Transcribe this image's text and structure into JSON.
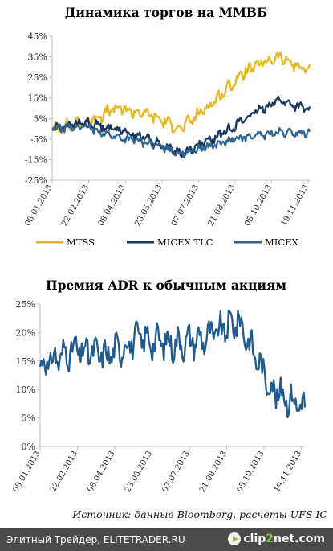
{
  "chart_data": [
    {
      "type": "line",
      "title": "Динамика торгов на ММВБ",
      "ylim": [
        -25,
        45
      ],
      "y_ticks": [
        "45%",
        "35%",
        "25%",
        "15%",
        "5%",
        "-5%",
        "-15%",
        "-25%"
      ],
      "x_ticks": [
        "08.01.2013",
        "22.02.2013",
        "08.04.2013",
        "23.05.2013",
        "07.07.2013",
        "21.08.2013",
        "05.10.2013",
        "19.11.2013"
      ],
      "grid": false,
      "legend_position": "bottom",
      "x": [
        "08.01.2013",
        "22.02.2013",
        "08.04.2013",
        "23.05.2013",
        "07.07.2013",
        "21.08.2013",
        "05.10.2013",
        "19.11.2013",
        "09.12.2013"
      ],
      "series": [
        {
          "name": "MTSS",
          "color": "#e6b823",
          "values": [
            0,
            3,
            10,
            7,
            0,
            13,
            28,
            35,
            28
          ]
        },
        {
          "name": "MICEX TLC",
          "color": "#17375e",
          "values": [
            0,
            3,
            0,
            -5,
            -12,
            -5,
            5,
            14,
            9
          ]
        },
        {
          "name": "MICEX",
          "color": "#2e6494",
          "values": [
            0,
            1,
            -4,
            -7,
            -12,
            -8,
            -4,
            -2,
            -2
          ]
        }
      ]
    },
    {
      "type": "line",
      "title": "Премия ADR к обычным акциям",
      "ylim": [
        0,
        25
      ],
      "y_ticks": [
        "25%",
        "20%",
        "15%",
        "10%",
        "5%",
        "0%"
      ],
      "x_ticks": [
        "08.01.2013",
        "22.02.2013",
        "08.04.2013",
        "23.05.2013",
        "07.07.2013",
        "21.08.2013",
        "05.10.2013",
        "19.11.2013"
      ],
      "grid": false,
      "x": [
        "08.01.2013",
        "22.02.2013",
        "08.04.2013",
        "23.05.2013",
        "07.07.2013",
        "21.08.2013",
        "05.10.2013",
        "19.11.2013",
        "09.12.2013"
      ],
      "series": [
        {
          "color": "#1f5b8f",
          "values": [
            14,
            17,
            16,
            19,
            18,
            19,
            22,
            10,
            7
          ]
        }
      ]
    }
  ],
  "source": "Источник: данные Bloomberg, расчеты UFS IC",
  "footer": {
    "left": "Элитный Трейдер, ELITETRADER.RU",
    "logo_a": "clip",
    "logo_b": "2",
    "logo_c": "net",
    "logo_d": ".com"
  }
}
